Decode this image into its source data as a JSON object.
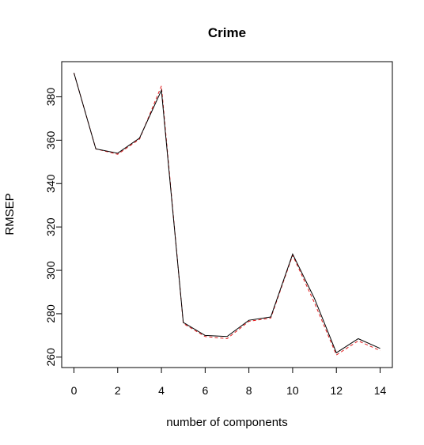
{
  "chart_data": {
    "type": "line",
    "title": "Crime",
    "xlabel": "number of components",
    "ylabel": "RMSEP",
    "x": [
      0,
      1,
      2,
      3,
      4,
      5,
      6,
      7,
      8,
      9,
      10,
      11,
      12,
      13,
      14
    ],
    "series": [
      {
        "style": "solid",
        "color": "#000000",
        "values": [
          391,
          356,
          354,
          361,
          383,
          276,
          270,
          269.5,
          277,
          278.5,
          307.5,
          287,
          262,
          268.5,
          264
        ]
      },
      {
        "style": "dashed",
        "color": "#e31a1c",
        "values": [
          391,
          356,
          353.5,
          360.5,
          385,
          275.5,
          269.5,
          268.5,
          276.5,
          278,
          307,
          285,
          261,
          267.5,
          263
        ]
      }
    ],
    "xlim": [
      -0.56,
      14.56
    ],
    "ylim": [
      255.2,
      396.2
    ],
    "xticks": [
      0,
      2,
      4,
      6,
      8,
      10,
      12,
      14
    ],
    "yticks": [
      260,
      280,
      300,
      320,
      340,
      360,
      380
    ]
  }
}
